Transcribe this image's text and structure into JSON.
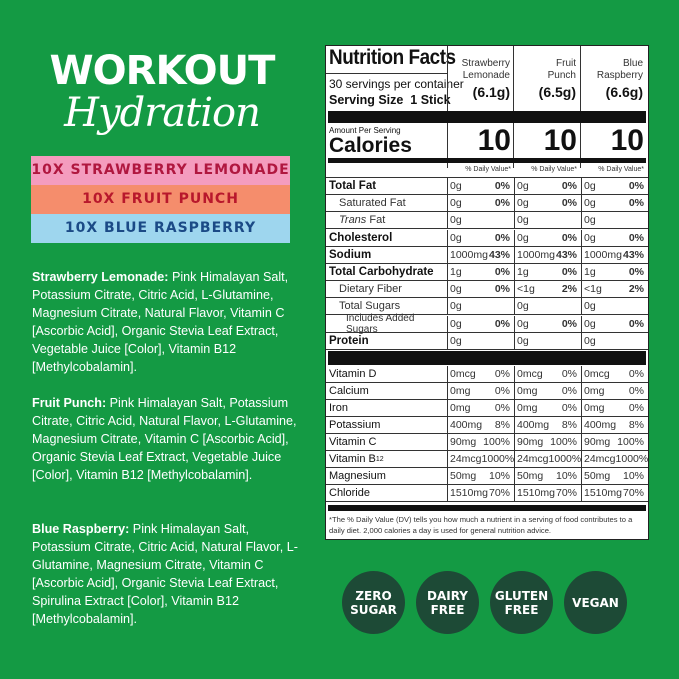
{
  "brand": {
    "title_line1": "WORKOUT",
    "title_line2": "Hydration"
  },
  "flavors": [
    {
      "label": "10X STRAWBERRY LEMONADE",
      "bg": "#f49cbe",
      "fg": "#b0173f"
    },
    {
      "label": "10X FRUIT PUNCH",
      "bg": "#f58d6c",
      "fg": "#b8182c"
    },
    {
      "label": "10X BLUE RASPBERRY",
      "bg": "#9ed6ee",
      "fg": "#1b4a86"
    }
  ],
  "ingredients": [
    {
      "name": "Strawberry Lemonade:",
      "text": " Pink Himalayan Salt, Potassium Citrate, Citric Acid, L-Glutamine, Magnesium Citrate, Natural Flavor, Vitamin C [Ascorbic Acid], Organic Stevia Leaf Extract, Vegetable Juice [Color], Vitamin B12 [Methylcobalamin]."
    },
    {
      "name": "Fruit Punch:",
      "text": " Pink Himalayan Salt, Potassium Citrate, Citric Acid, Natural Flavor, L-Glutamine, Magnesium Citrate, Vitamin C [Ascorbic Acid], Organic Stevia Leaf Extract, Vegetable Juice [Color], Vitamin B12 [Methylcobalamin]."
    },
    {
      "name": "Blue Raspberry:",
      "text": " Pink Himalayan Salt, Potassium Citrate, Citric Acid, Natural Flavor, L-Glutamine, Magnesium Citrate, Vitamin C [Ascorbic Acid], Organic Stevia Leaf Extract, Spirulina Extract [Color], Vitamin B12 [Methylcobalamin]."
    }
  ],
  "nutrition": {
    "title": "Nutrition Facts",
    "servings": "30 servings per container",
    "serving_size": "Serving Size  1 Stick",
    "columns": [
      {
        "name1": "Strawberry",
        "name2": "Lemonade",
        "size": "(6.1g)"
      },
      {
        "name1": "Fruit",
        "name2": "Punch",
        "size": "(6.5g)"
      },
      {
        "name1": "Blue",
        "name2": "Raspberry",
        "size": "(6.6g)"
      }
    ],
    "amount_per_serving": "Amount Per Serving",
    "calories_label": "Calories",
    "calories": [
      "10",
      "10",
      "10"
    ],
    "dv_header": "% Daily Value*",
    "rows": [
      {
        "label": "Total Fat",
        "style": "bold",
        "values": [
          [
            "0g",
            "0%"
          ],
          [
            "0g",
            "0%"
          ],
          [
            "0g",
            "0%"
          ]
        ]
      },
      {
        "label": "Saturated Fat",
        "style": "indent",
        "values": [
          [
            "0g",
            "0%"
          ],
          [
            "0g",
            "0%"
          ],
          [
            "0g",
            "0%"
          ]
        ]
      },
      {
        "label": "Trans Fat",
        "style": "indent-trans",
        "values": [
          [
            "0g",
            ""
          ],
          [
            "0g",
            ""
          ],
          [
            "0g",
            ""
          ]
        ]
      },
      {
        "label": "Cholesterol",
        "style": "bold",
        "values": [
          [
            "0g",
            "0%"
          ],
          [
            "0g",
            "0%"
          ],
          [
            "0g",
            "0%"
          ]
        ]
      },
      {
        "label": "Sodium",
        "style": "bold",
        "values": [
          [
            "1000mg",
            "43%"
          ],
          [
            "1000mg",
            "43%"
          ],
          [
            "1000mg",
            "43%"
          ]
        ]
      },
      {
        "label": "Total Carbohydrate",
        "style": "bold",
        "values": [
          [
            "1g",
            "0%"
          ],
          [
            "1g",
            "0%"
          ],
          [
            "1g",
            "0%"
          ]
        ]
      },
      {
        "label": "Dietary Fiber",
        "style": "indent",
        "values": [
          [
            "0g",
            "0%"
          ],
          [
            "<1g",
            "2%"
          ],
          [
            "<1g",
            "2%"
          ]
        ]
      },
      {
        "label": "Total Sugars",
        "style": "indent",
        "values": [
          [
            "0g",
            ""
          ],
          [
            "0g",
            ""
          ],
          [
            "0g",
            ""
          ]
        ]
      },
      {
        "label": "Includes Added Sugars",
        "style": "indent2",
        "values": [
          [
            "0g",
            "0%"
          ],
          [
            "0g",
            "0%"
          ],
          [
            "0g",
            "0%"
          ]
        ]
      },
      {
        "label": "Protein",
        "style": "bold",
        "values": [
          [
            "0g",
            ""
          ],
          [
            "0g",
            ""
          ],
          [
            "0g",
            ""
          ]
        ]
      }
    ],
    "micros": [
      {
        "label": "Vitamin D",
        "values": [
          [
            "0mcg",
            "0%"
          ],
          [
            "0mcg",
            "0%"
          ],
          [
            "0mcg",
            "0%"
          ]
        ]
      },
      {
        "label": "Calcium",
        "values": [
          [
            "0mg",
            "0%"
          ],
          [
            "0mg",
            "0%"
          ],
          [
            "0mg",
            "0%"
          ]
        ]
      },
      {
        "label": "Iron",
        "values": [
          [
            "0mg",
            "0%"
          ],
          [
            "0mg",
            "0%"
          ],
          [
            "0mg",
            "0%"
          ]
        ]
      },
      {
        "label": "Potassium",
        "values": [
          [
            "400mg",
            "8%"
          ],
          [
            "400mg",
            "8%"
          ],
          [
            "400mg",
            "8%"
          ]
        ]
      },
      {
        "label": "Vitamin C",
        "values": [
          [
            "90mg",
            "100%"
          ],
          [
            "90mg",
            "100%"
          ],
          [
            "90mg",
            "100%"
          ]
        ]
      },
      {
        "label": "Vitamin B",
        "sub": "12",
        "values": [
          [
            "24mcg",
            "1000%"
          ],
          [
            "24mcg",
            "1000%"
          ],
          [
            "24mcg",
            "1000%"
          ]
        ]
      },
      {
        "label": "Magnesium",
        "values": [
          [
            "50mg",
            "10%"
          ],
          [
            "50mg",
            "10%"
          ],
          [
            "50mg",
            "10%"
          ]
        ]
      },
      {
        "label": "Chloride",
        "values": [
          [
            "1510mg",
            "70%"
          ],
          [
            "1510mg",
            "70%"
          ],
          [
            "1510mg",
            "70%"
          ]
        ]
      }
    ],
    "footnote": "*The % Daily Value (DV) tells you how much a nutrient in a serving of food contributes to a daily diet. 2,000 calories a day is used for general nutrition advice."
  },
  "badges": [
    {
      "line1": "ZERO",
      "line2": "SUGAR"
    },
    {
      "line1": "DAIRY",
      "line2": "FREE"
    },
    {
      "line1": "GLUTEN",
      "line2": "FREE"
    },
    {
      "line1": "VEGAN",
      "line2": ""
    }
  ]
}
